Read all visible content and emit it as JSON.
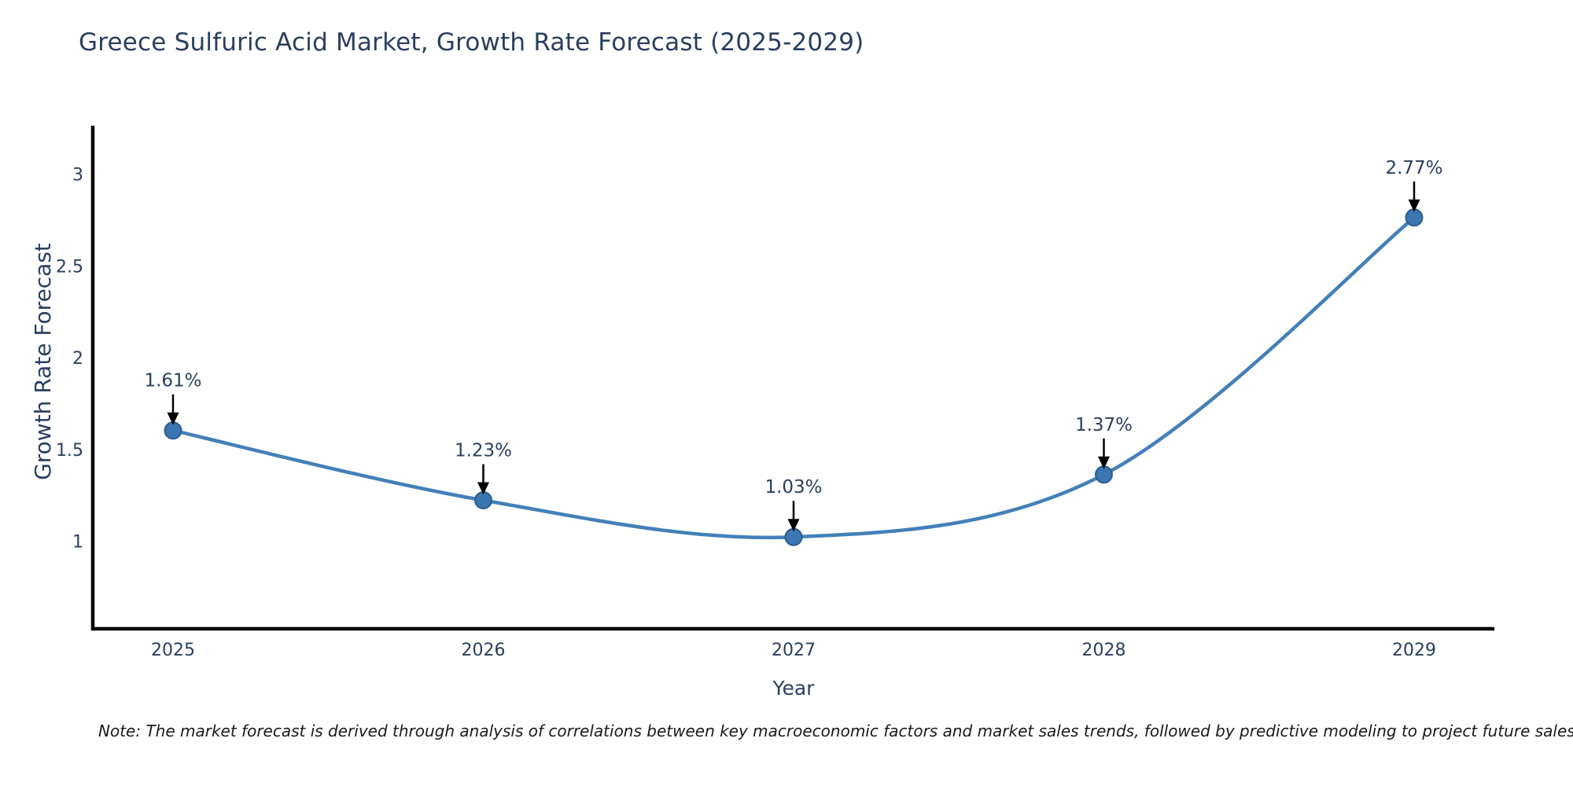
{
  "chart_data": {
    "type": "line",
    "title": "Greece Sulfuric Acid Market, Growth Rate Forecast (2025-2029)",
    "categories": [
      "2025",
      "2026",
      "2027",
      "2028",
      "2029"
    ],
    "values": [
      1.61,
      1.23,
      1.03,
      1.37,
      2.77
    ],
    "point_labels": [
      "1.61%",
      "1.23%",
      "1.03%",
      "1.37%",
      "2.77%"
    ],
    "xlabel": "Year",
    "ylabel": "Growth Rate Forecast",
    "yticks": [
      1,
      1.5,
      2,
      2.5,
      3
    ],
    "ytick_labels": [
      "1",
      "1.5",
      "2",
      "2.5",
      "3"
    ],
    "ylim": [
      0.53,
      3.27
    ],
    "grid": false,
    "legend": false,
    "line_shape": "spline",
    "colors": {
      "line": "#4380b8",
      "marker_fill": "#3a76b0",
      "marker_edge": "#2b5d8e",
      "axis": "#000000",
      "text": "#2a3f5f",
      "annotation_arrow": "#000000"
    }
  },
  "note": "Note: The market forecast is derived through analysis of correlations between key macroeconomic factors and market sales trends, followed by predictive modeling to project future sales"
}
